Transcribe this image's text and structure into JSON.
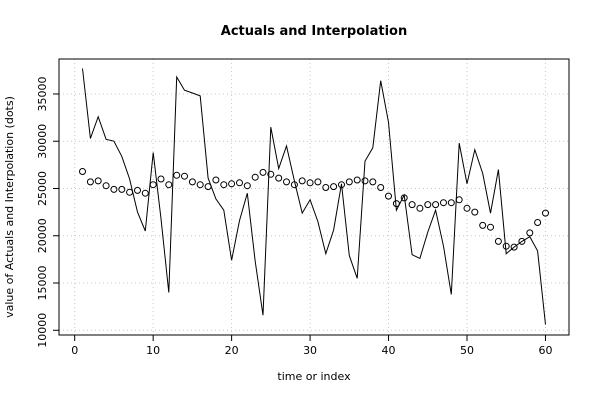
{
  "chart_data": {
    "type": "line",
    "title": "Actuals and Interpolation",
    "xlabel": "time or index",
    "ylabel": "value of Actuals and Interpolation (dots)",
    "xlim": [
      -2,
      63
    ],
    "ylim": [
      9500,
      38700
    ],
    "x_ticks": [
      0,
      10,
      20,
      30,
      40,
      50,
      60
    ],
    "y_ticks": [
      10000,
      15000,
      20000,
      25000,
      30000,
      35000
    ],
    "grid": true,
    "legend": "none",
    "x": [
      1,
      2,
      3,
      4,
      5,
      6,
      7,
      8,
      9,
      10,
      11,
      12,
      13,
      14,
      15,
      16,
      17,
      18,
      19,
      20,
      21,
      22,
      23,
      24,
      25,
      26,
      27,
      28,
      29,
      30,
      31,
      32,
      33,
      34,
      35,
      36,
      37,
      38,
      39,
      40,
      41,
      42,
      43,
      44,
      45,
      46,
      47,
      48,
      49,
      50,
      51,
      52,
      53,
      54,
      55,
      56,
      57,
      58,
      59,
      60
    ],
    "series": [
      {
        "style": "line",
        "color": "#000000",
        "values": [
          37700,
          30300,
          32600,
          30200,
          30000,
          28400,
          26000,
          22500,
          20500,
          28800,
          21800,
          14000,
          36800,
          35400,
          35100,
          34800,
          26100,
          23900,
          22700,
          17400,
          21600,
          24500,
          17300,
          11600,
          31500,
          27100,
          29500,
          25800,
          22400,
          23800,
          21500,
          18100,
          20600,
          25500,
          17900,
          15500,
          27900,
          29300,
          36400,
          32000,
          22700,
          24300,
          18000,
          17600,
          20400,
          22700,
          18900,
          13800,
          29800,
          25500,
          29100,
          26600,
          22400,
          27000,
          18100,
          18800,
          19400,
          19900,
          18400,
          10600
        ]
      },
      {
        "style": "dots",
        "color": "#000000",
        "values": [
          26800,
          25700,
          25800,
          25300,
          24900,
          24900,
          24600,
          24800,
          24500,
          25400,
          26000,
          25400,
          26400,
          26300,
          25700,
          25400,
          25200,
          25900,
          25400,
          25500,
          25600,
          25300,
          26200,
          26700,
          26500,
          26100,
          25700,
          25400,
          25800,
          25600,
          25700,
          25100,
          25200,
          25400,
          25700,
          25900,
          25800,
          25700,
          25100,
          24200,
          23400,
          24000,
          23300,
          22900,
          23300,
          23300,
          23500,
          23500,
          23800,
          22900,
          22500,
          21100,
          20900,
          19400,
          18900,
          18800,
          19400,
          20300,
          21400,
          22400
        ]
      }
    ]
  }
}
